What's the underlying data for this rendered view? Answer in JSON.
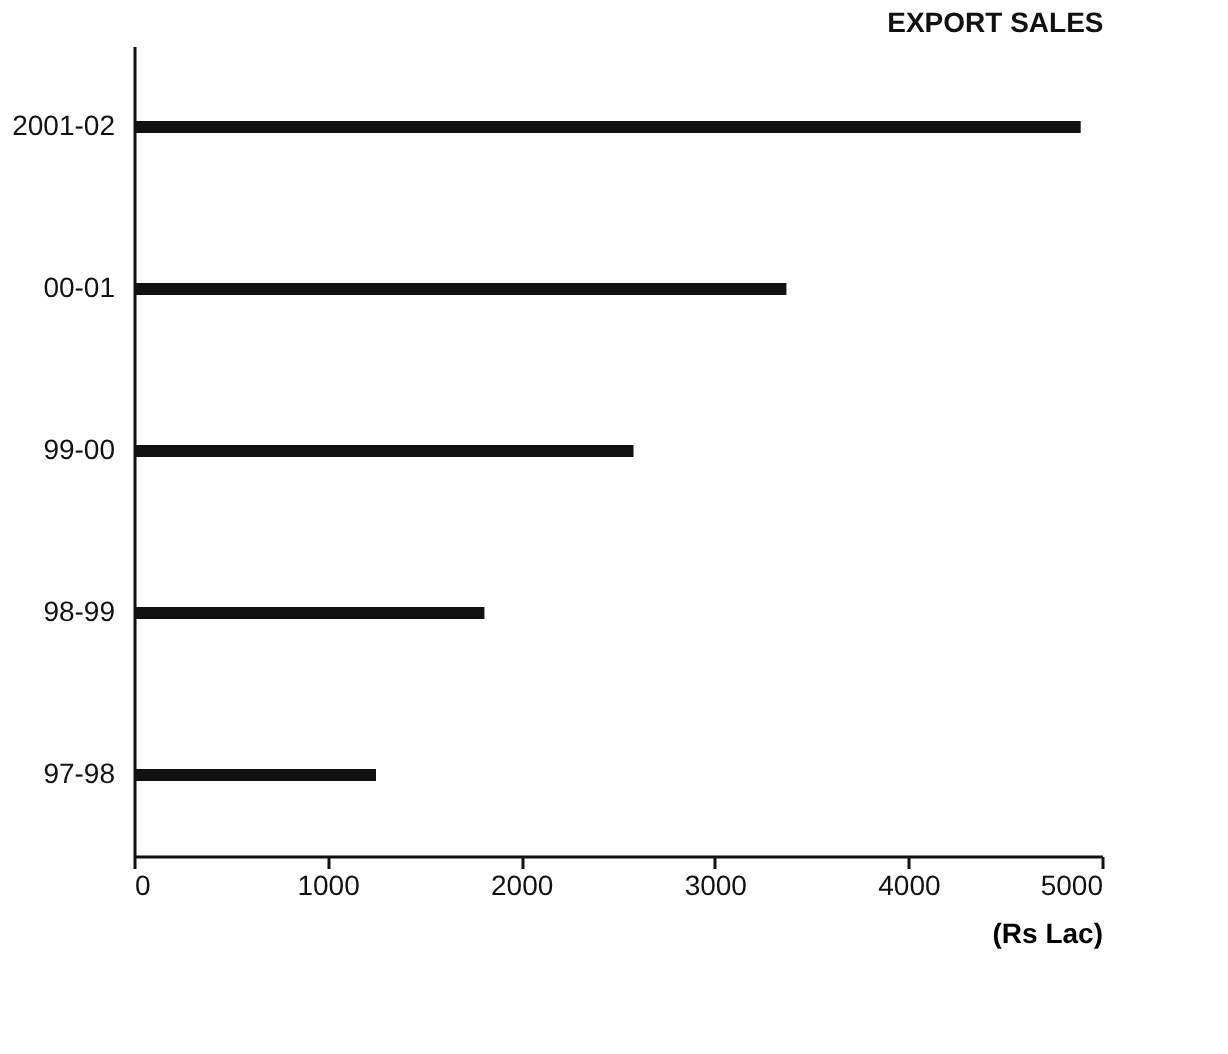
{
  "chart_data": {
    "type": "bar",
    "orientation": "horizontal",
    "title": "EXPORT SALES",
    "xlabel": "(Rs Lac)",
    "categories": [
      "2001-02",
      "00-01",
      "99-00",
      "98-99",
      "97-98"
    ],
    "values": [
      4890,
      3370,
      2580,
      1810,
      1250
    ],
    "color": "#111111",
    "xlim": [
      0,
      5000
    ],
    "xticks": [
      0,
      1000,
      2000,
      3000,
      4000,
      5000
    ],
    "grid": false
  }
}
